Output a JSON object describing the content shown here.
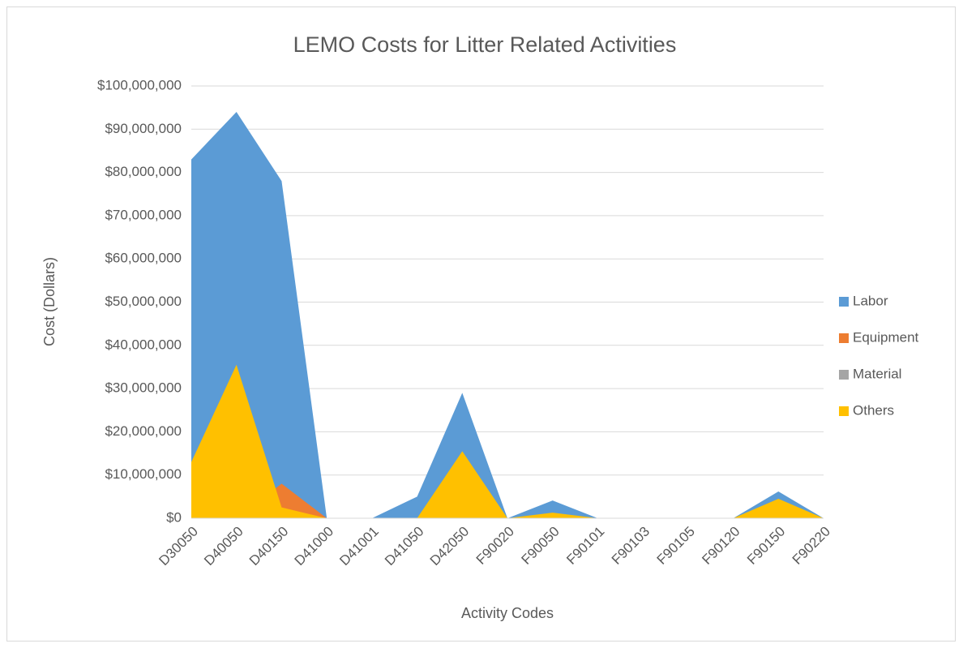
{
  "chart_data": {
    "type": "area",
    "title": "LEMO Costs for Litter Related Activities",
    "x_label": "Activity Codes",
    "y_label": "Cost (Dollars)",
    "categories": [
      "D30050",
      "D40050",
      "D40150",
      "D41000",
      "D41001",
      "D41050",
      "D42050",
      "F90020",
      "F90050",
      "F90101",
      "F90103",
      "F90105",
      "F90120",
      "F90150",
      "F90220"
    ],
    "series": [
      {
        "name": "Labor",
        "color": "#5b9bd5",
        "values": [
          83000000,
          94000000,
          78000000,
          0,
          0,
          5000000,
          29000000,
          0,
          4100000,
          0,
          0,
          0,
          0,
          6200000,
          0
        ]
      },
      {
        "name": "Equipment",
        "color": "#ed7d31",
        "values": [
          0,
          0,
          8000000,
          0,
          0,
          0,
          0,
          0,
          0,
          0,
          0,
          0,
          0,
          0,
          0
        ]
      },
      {
        "name": "Material",
        "color": "#a5a5a5",
        "values": [
          0,
          0,
          0,
          0,
          0,
          0,
          0,
          0,
          0,
          0,
          0,
          0,
          0,
          0,
          0
        ]
      },
      {
        "name": "Others",
        "color": "#ffc000",
        "values": [
          13000000,
          35500000,
          2500000,
          0,
          0,
          0,
          15500000,
          0,
          1300000,
          0,
          0,
          0,
          0,
          4500000,
          0
        ]
      }
    ],
    "ylim": [
      0,
      100000000
    ],
    "yticks": [
      {
        "value": 0,
        "label": "$0"
      },
      {
        "value": 10000000,
        "label": "$10,000,000"
      },
      {
        "value": 20000000,
        "label": "$20,000,000"
      },
      {
        "value": 30000000,
        "label": "$30,000,000"
      },
      {
        "value": 40000000,
        "label": "$40,000,000"
      },
      {
        "value": 50000000,
        "label": "$50,000,000"
      },
      {
        "value": 60000000,
        "label": "$60,000,000"
      },
      {
        "value": 70000000,
        "label": "$70,000,000"
      },
      {
        "value": 80000000,
        "label": "$80,000,000"
      },
      {
        "value": 90000000,
        "label": "$90,000,000"
      },
      {
        "value": 100000000,
        "label": "$100,000,000"
      }
    ],
    "grid": true,
    "legend": "right"
  }
}
